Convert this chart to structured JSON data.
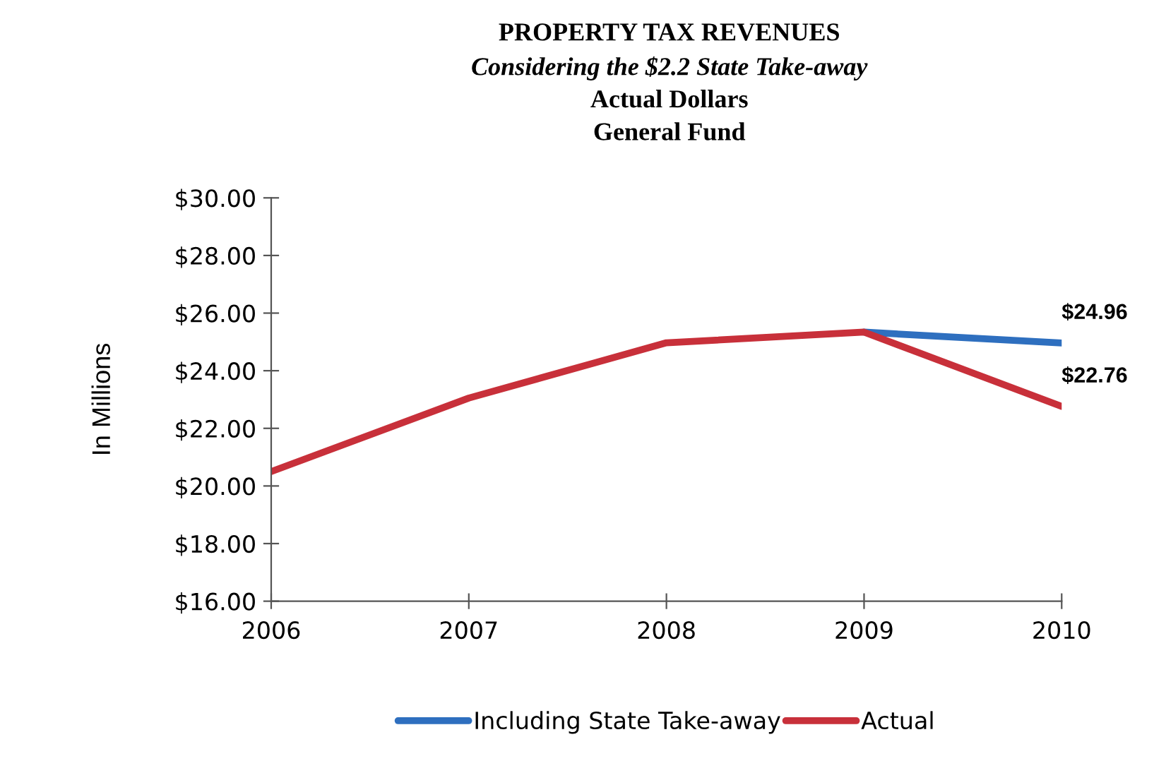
{
  "chart_data": {
    "type": "line",
    "title": "PROPERTY TAX REVENUES",
    "subtitle": "Considering the $2.2 State Take-away\nActual Dollars\nGeneral Fund",
    "ylabel": "In Millions",
    "categories": [
      "2006",
      "2007",
      "2008",
      "2009",
      "2010"
    ],
    "series": [
      {
        "name": "Including State Take-away",
        "color": "#2e6fbf",
        "values": [
          null,
          null,
          null,
          25.34,
          24.96
        ],
        "value_labels": [
          null,
          null,
          null,
          null,
          "$24.96"
        ]
      },
      {
        "name": "Actual",
        "color": "#c8303a",
        "values": [
          20.5,
          23.05,
          24.97,
          25.34,
          22.76
        ],
        "value_labels": [
          null,
          null,
          null,
          null,
          "$22.76"
        ]
      }
    ],
    "ylim": [
      16,
      30
    ],
    "yticks": [
      {
        "value": 16,
        "label": "$16.00"
      },
      {
        "value": 18,
        "label": "$18.00"
      },
      {
        "value": 20,
        "label": "$20.00"
      },
      {
        "value": 22,
        "label": "$22.00"
      },
      {
        "value": 24,
        "label": "$24.00"
      },
      {
        "value": 26,
        "label": "$26.00"
      },
      {
        "value": 28,
        "label": "$28.00"
      },
      {
        "value": 30,
        "label": "$30.00"
      }
    ],
    "grid": false,
    "legend": "bottom",
    "marker": "none",
    "line_style": "solid"
  }
}
